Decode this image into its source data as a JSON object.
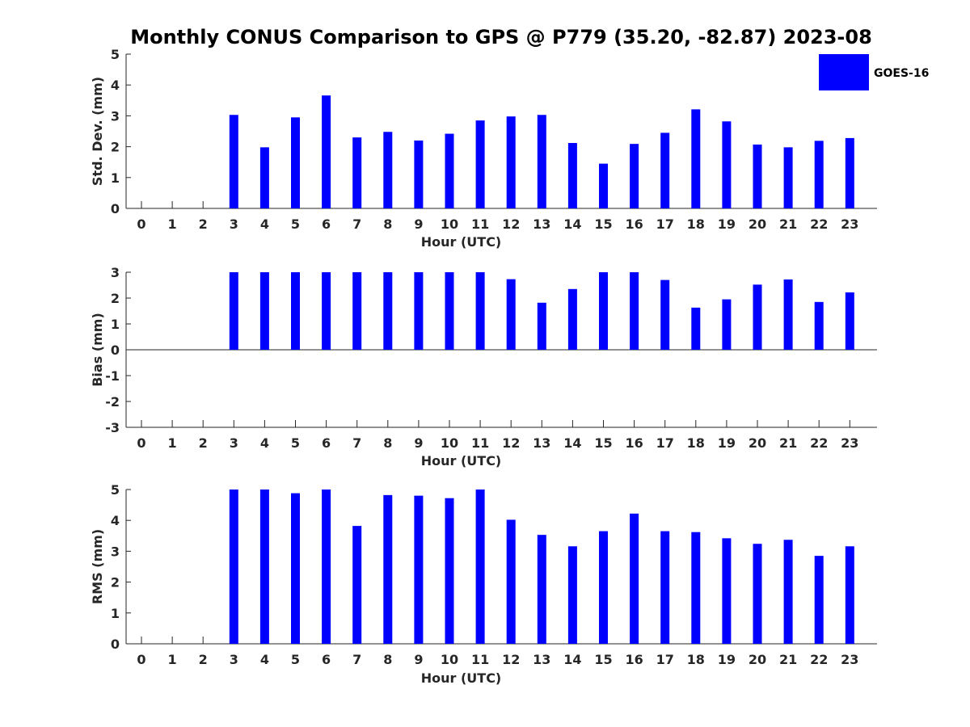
{
  "figure": {
    "title": "Monthly CONUS Comparison to GPS @ P779 (35.20, -82.87) 2023-08",
    "legend": {
      "label": "GOES-16",
      "color": "#0000ff",
      "placement": "top-right"
    }
  },
  "chart_data": [
    {
      "type": "bar",
      "xlabel": "Hour (UTC)",
      "ylabel": "Std. Dev. (mm)",
      "ylim": [
        0,
        5
      ],
      "yticks": [
        0,
        1,
        2,
        3,
        4,
        5
      ],
      "categories": [
        "0",
        "1",
        "2",
        "3",
        "4",
        "5",
        "6",
        "7",
        "8",
        "9",
        "10",
        "11",
        "12",
        "13",
        "14",
        "15",
        "16",
        "17",
        "18",
        "19",
        "20",
        "21",
        "22",
        "23"
      ],
      "series": [
        {
          "name": "GOES-16",
          "color": "#0000ff",
          "values": [
            null,
            null,
            null,
            3.03,
            1.98,
            2.95,
            3.66,
            2.3,
            2.48,
            2.2,
            2.42,
            2.85,
            2.98,
            3.03,
            2.12,
            1.45,
            2.09,
            2.45,
            3.21,
            2.82,
            2.07,
            1.98,
            2.19,
            2.28
          ]
        }
      ],
      "grid": false
    },
    {
      "type": "bar",
      "xlabel": "Hour (UTC)",
      "ylabel": "Bias (mm)",
      "ylim": [
        -3,
        3
      ],
      "yticks": [
        -3,
        -2,
        -1,
        0,
        1,
        2,
        3
      ],
      "categories": [
        "0",
        "1",
        "2",
        "3",
        "4",
        "5",
        "6",
        "7",
        "8",
        "9",
        "10",
        "11",
        "12",
        "13",
        "14",
        "15",
        "16",
        "17",
        "18",
        "19",
        "20",
        "21",
        "22",
        "23"
      ],
      "series": [
        {
          "name": "GOES-16",
          "color": "#0000ff",
          "values": [
            null,
            null,
            null,
            3.0,
            3.0,
            3.0,
            3.0,
            3.0,
            3.0,
            3.0,
            3.0,
            3.0,
            2.73,
            1.82,
            2.35,
            3.0,
            3.0,
            2.7,
            1.63,
            1.95,
            2.52,
            2.72,
            1.85,
            2.22
          ]
        }
      ],
      "grid": false
    },
    {
      "type": "bar",
      "xlabel": "Hour (UTC)",
      "ylabel": "RMS (mm)",
      "ylim": [
        0,
        5
      ],
      "yticks": [
        0,
        1,
        2,
        3,
        4,
        5
      ],
      "categories": [
        "0",
        "1",
        "2",
        "3",
        "4",
        "5",
        "6",
        "7",
        "8",
        "9",
        "10",
        "11",
        "12",
        "13",
        "14",
        "15",
        "16",
        "17",
        "18",
        "19",
        "20",
        "21",
        "22",
        "23"
      ],
      "series": [
        {
          "name": "GOES-16",
          "color": "#0000ff",
          "values": [
            null,
            null,
            null,
            5.0,
            5.0,
            4.88,
            5.0,
            3.82,
            4.82,
            4.8,
            4.72,
            5.0,
            4.02,
            3.53,
            3.16,
            3.65,
            4.22,
            3.65,
            3.62,
            3.42,
            3.24,
            3.37,
            2.85,
            3.16
          ]
        }
      ],
      "grid": false
    }
  ]
}
